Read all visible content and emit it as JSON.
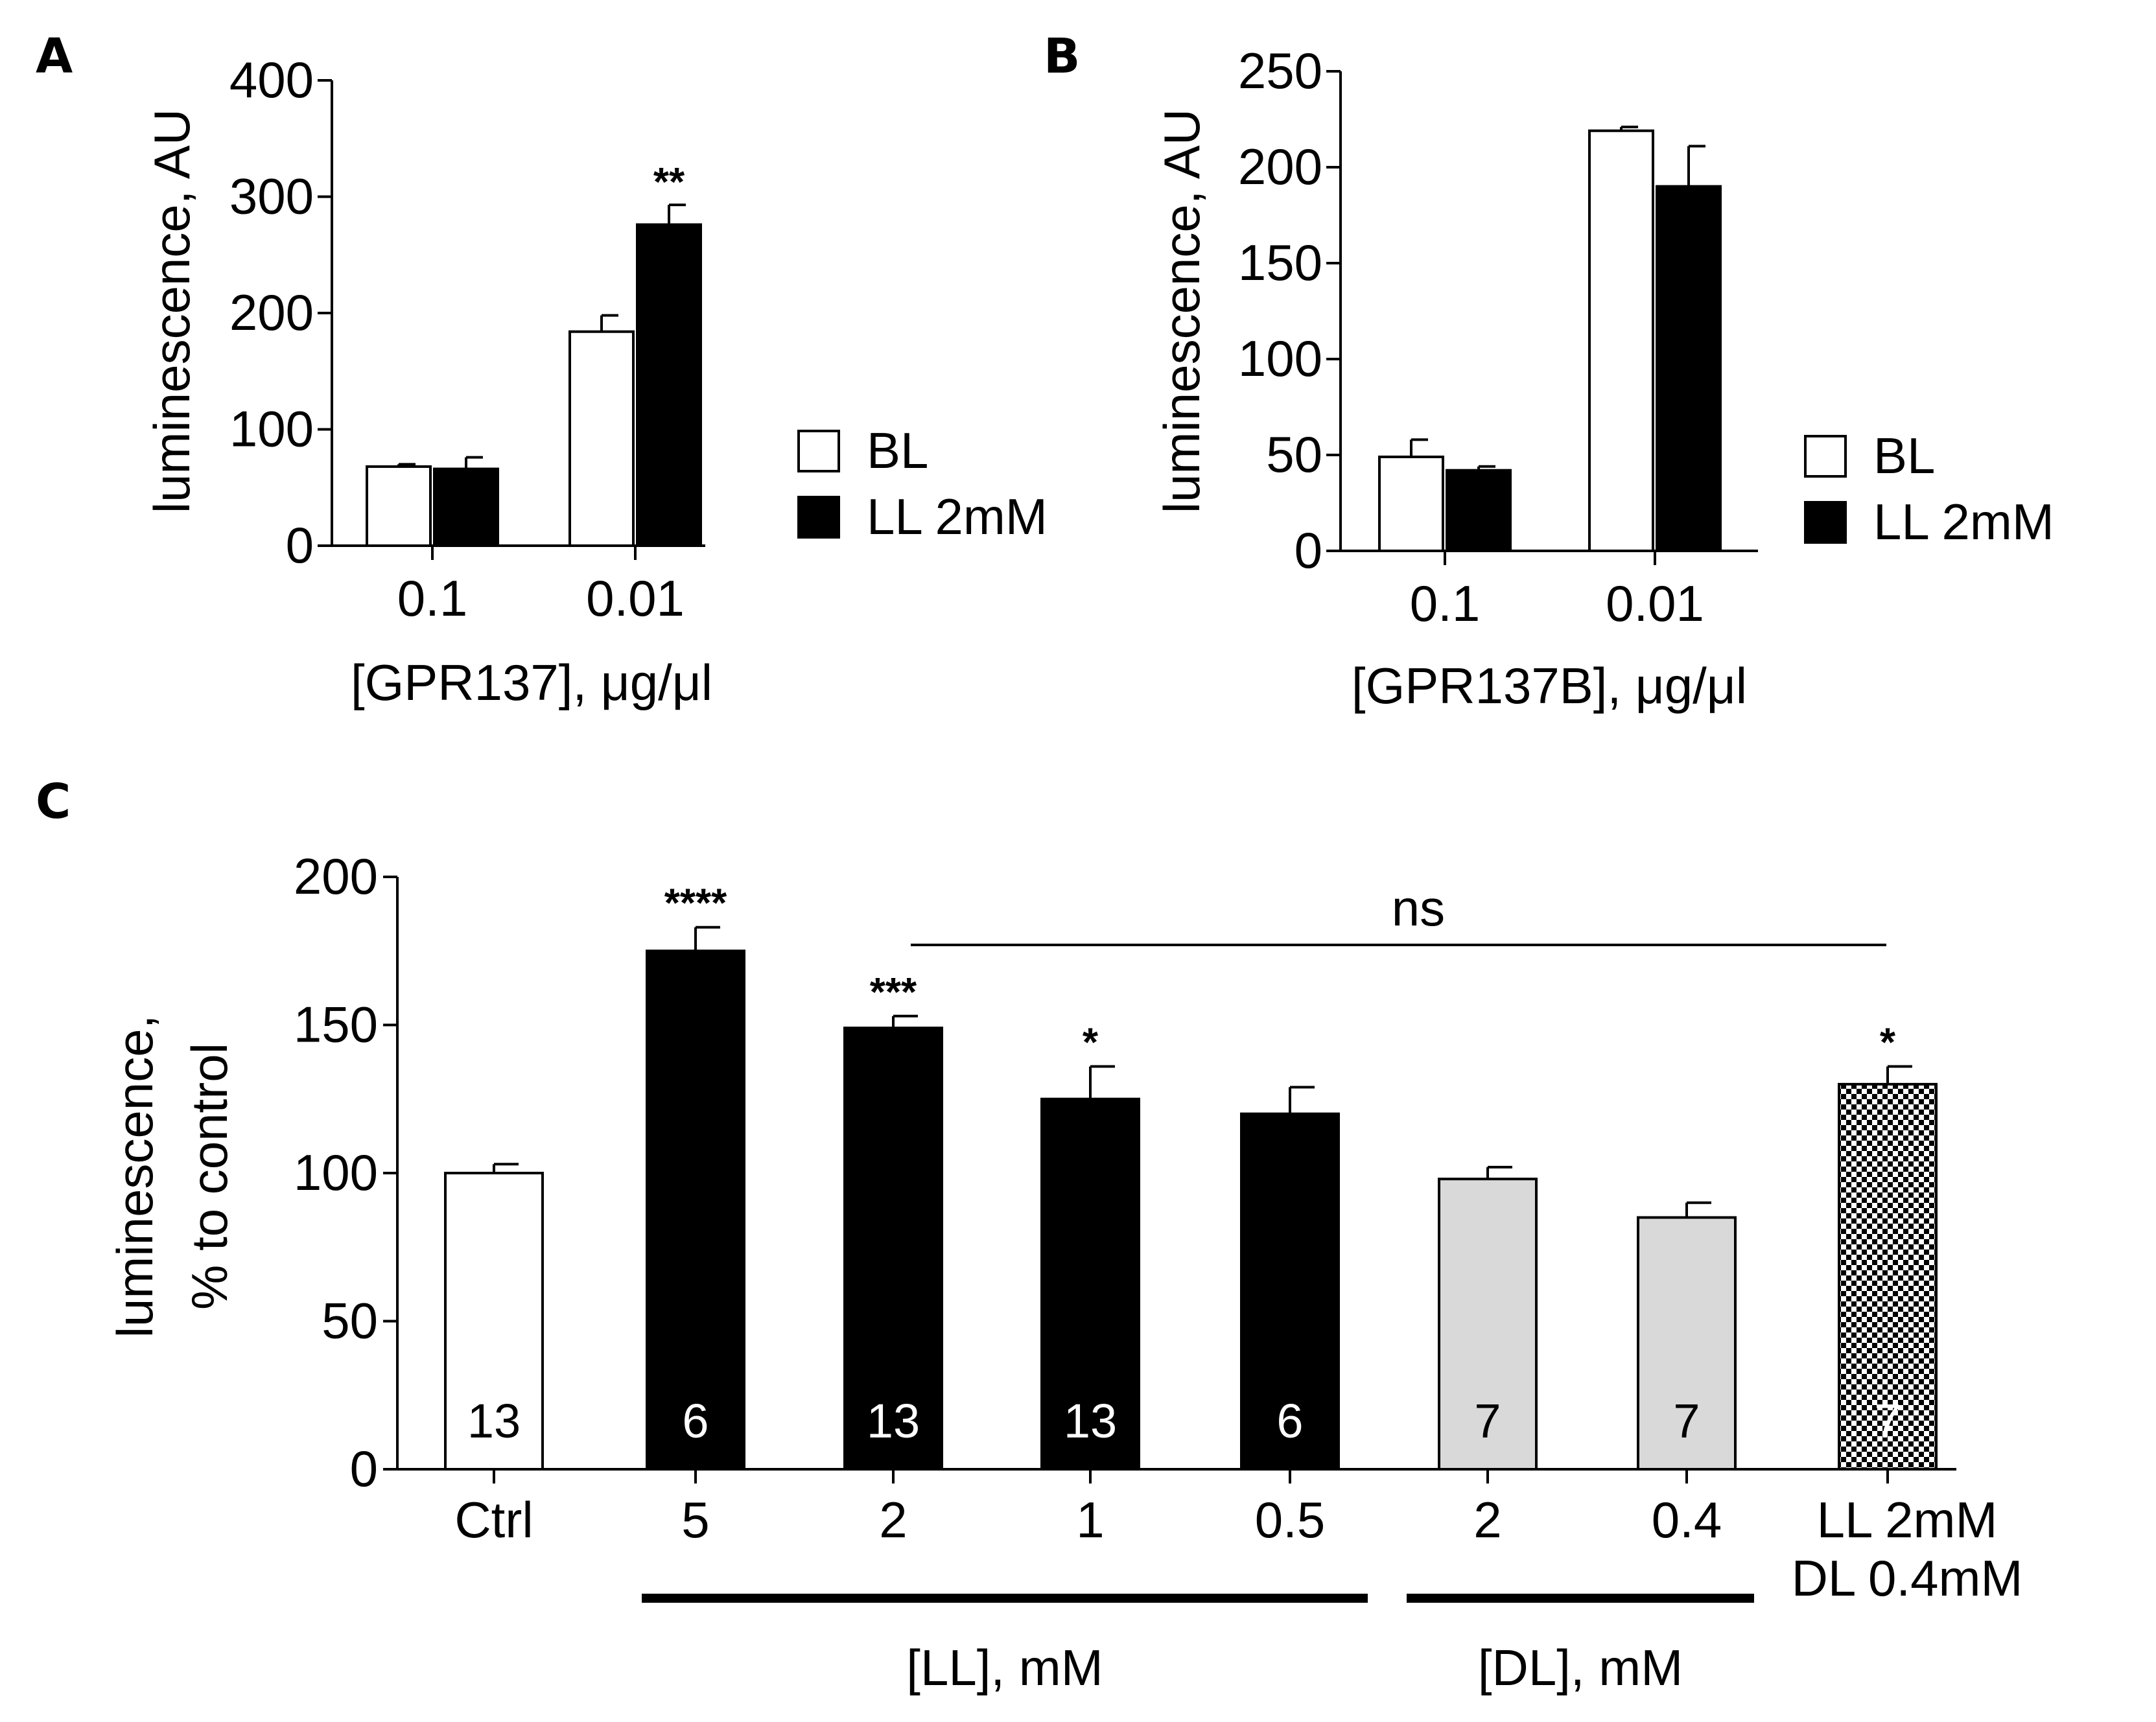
{
  "chart_data": [
    {
      "panel": "A",
      "type": "bar",
      "categories": [
        "0.1",
        "0.01"
      ],
      "xlabel": "[GPR137], μg/μl",
      "ylabel": "luminescence, AU",
      "ylim": [
        0,
        400
      ],
      "yticks": [
        0,
        100,
        200,
        300,
        400
      ],
      "series": [
        {
          "name": "BL",
          "color": "#ffffff",
          "values": [
            68,
            184
          ],
          "errors": [
            2,
            14
          ]
        },
        {
          "name": "LL 2mM",
          "color": "#000000",
          "values": [
            66,
            276
          ],
          "errors": [
            10,
            17
          ]
        }
      ],
      "annotations": [
        {
          "category": "0.01",
          "series": "LL 2mM",
          "text": "**"
        }
      ],
      "legend": [
        "BL",
        "LL 2mM"
      ],
      "legend_position": "right"
    },
    {
      "panel": "B",
      "type": "bar",
      "categories": [
        "0.1",
        "0.01"
      ],
      "xlabel": "[GPR137B], μg/μl",
      "ylabel": "luminescence, AU",
      "ylim": [
        0,
        250
      ],
      "yticks": [
        0,
        50,
        100,
        150,
        200,
        250
      ],
      "series": [
        {
          "name": "BL",
          "color": "#ffffff",
          "values": [
            49,
            219
          ],
          "errors": [
            9,
            2
          ]
        },
        {
          "name": "LL 2mM",
          "color": "#000000",
          "values": [
            42,
            190
          ],
          "errors": [
            2,
            21
          ]
        }
      ],
      "annotations": [],
      "legend": [
        "BL",
        "LL 2mM"
      ],
      "legend_position": "right"
    },
    {
      "panel": "C",
      "type": "bar",
      "categories": [
        "Ctrl",
        "5",
        "2",
        "1",
        "0.5",
        "2",
        "0.4",
        "LL 2mM\nDL 0.4mM"
      ],
      "ylabel": "luminescence, % to control",
      "ylabel_lines": [
        "luminescence,",
        "% to control"
      ],
      "ylim": [
        0,
        200
      ],
      "yticks": [
        0,
        50,
        100,
        150,
        200
      ],
      "values": [
        100,
        175,
        149,
        125,
        120,
        98,
        85,
        130
      ],
      "errors": [
        3,
        8,
        4,
        11,
        9,
        4,
        5,
        6
      ],
      "n": [
        "13",
        "6",
        "13",
        "13",
        "6",
        "7",
        "7",
        "7"
      ],
      "fills": [
        "white",
        "black",
        "black",
        "black",
        "black",
        "gray",
        "gray",
        "checker"
      ],
      "significance": [
        "",
        "****",
        "***",
        "*",
        "",
        "",
        "",
        "*"
      ],
      "group_labels": [
        {
          "label": "[LL], mM",
          "from": 1,
          "to": 4
        },
        {
          "label": "[DL], mM",
          "from": 5,
          "to": 6
        }
      ],
      "comparison": {
        "label": "ns",
        "from": 2,
        "to": 7
      }
    }
  ],
  "colors": {
    "black": "#000000",
    "white": "#ffffff",
    "gray": "#d9d9d9"
  }
}
